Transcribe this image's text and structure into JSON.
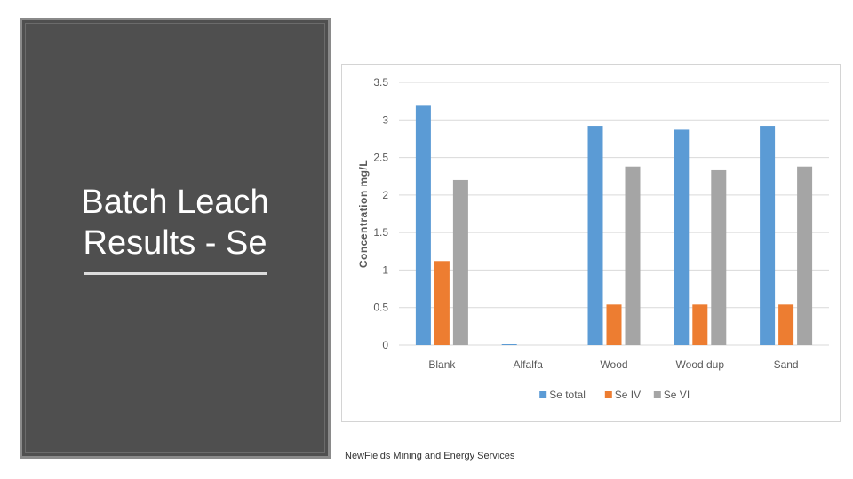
{
  "slide": {
    "title_line1": "Batch Leach",
    "title_line2": "Results - Se",
    "footer": "NewFields Mining and Energy Services"
  },
  "colors": {
    "panel": "#4f4f4f",
    "se_total": "#5b9bd5",
    "se_iv": "#ed7d31",
    "se_vi": "#a5a5a5",
    "grid": "#d9d9d9"
  },
  "chart_data": {
    "type": "bar",
    "title": "",
    "xlabel": "",
    "ylabel": "Concentration mg/L",
    "ylim": [
      0,
      3.5
    ],
    "yticks": [
      "0",
      "0.5",
      "1",
      "1.5",
      "2",
      "2.5",
      "3",
      "3.5"
    ],
    "grid": true,
    "legend_position": "bottom",
    "categories": [
      "Blank",
      "Alfalfa",
      "Wood",
      "Wood dup",
      "Sand"
    ],
    "series": [
      {
        "name": "Se total",
        "color": "#5b9bd5",
        "values": [
          3.2,
          0.01,
          2.92,
          2.88,
          2.92
        ]
      },
      {
        "name": "Se IV",
        "color": "#ed7d31",
        "values": [
          1.12,
          0,
          0.54,
          0.54,
          0.54
        ]
      },
      {
        "name": "Se VI",
        "color": "#a5a5a5",
        "values": [
          2.2,
          0,
          2.38,
          2.33,
          2.38
        ]
      }
    ]
  }
}
